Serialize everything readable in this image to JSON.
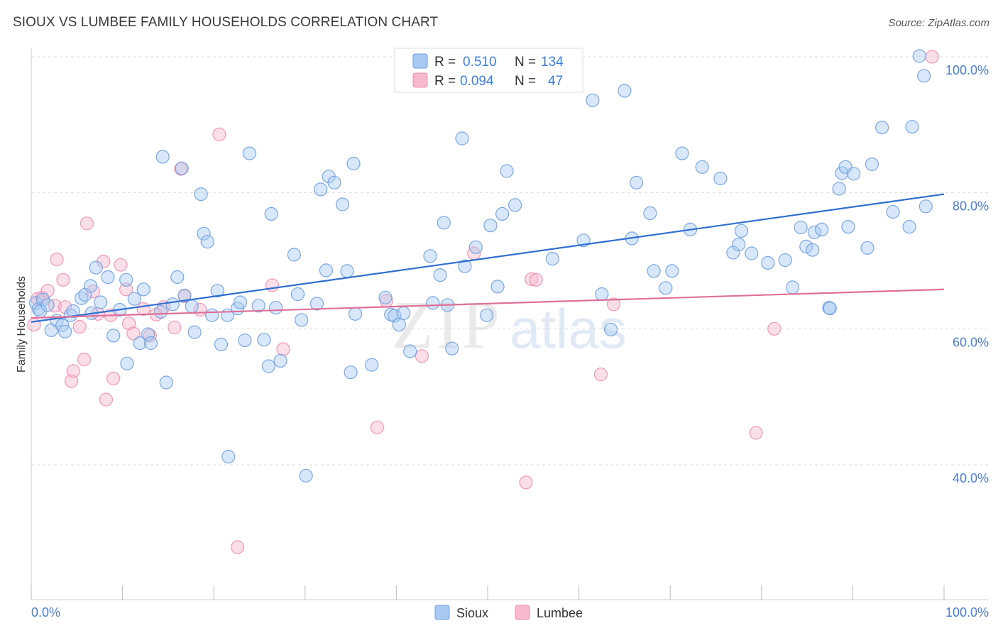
{
  "title": "SIOUX VS LUMBEE FAMILY HOUSEHOLDS CORRELATION CHART",
  "source": "Source: ZipAtlas.com",
  "watermark": {
    "zip": "ZIP",
    "atlas": "atlas"
  },
  "colors": {
    "sioux_fill": "#a9c9f2",
    "sioux_stroke": "#6f9fe0",
    "sioux_line": "#2f6fd0",
    "lumbee_fill": "#f7b9cc",
    "lumbee_stroke": "#ee8fb0",
    "lumbee_line": "#e0709a",
    "grid": "#dddddd",
    "axis_label": "#4a7fd0"
  },
  "legend_top": {
    "sioux": {
      "r_label": "R =",
      "r_value": "0.510",
      "n_label": "N =",
      "n_value": "134"
    },
    "lumbee": {
      "r_label": "R =",
      "r_value": "0.094",
      "n_label": "N =",
      "n_value": "47"
    }
  },
  "legend_bottom": {
    "sioux": "Sioux",
    "lumbee": "Lumbee"
  },
  "chart_data": {
    "type": "scatter",
    "title": "SIOUX VS LUMBEE FAMILY HOUSEHOLDS CORRELATION CHART",
    "xlabel": "",
    "ylabel": "Family Households",
    "xlim": [
      0,
      100
    ],
    "ylim": [
      20,
      102
    ],
    "x_tick_labels": [
      "0.0%",
      "100.0%"
    ],
    "y_ticks": [
      40,
      60,
      80,
      100
    ],
    "y_tick_labels": [
      "40.0%",
      "60.0%",
      "80.0%",
      "100.0%"
    ],
    "grid": "horizontal dashed",
    "legend": "top-center and bottom-center",
    "series": [
      {
        "name": "Sioux",
        "r": 0.51,
        "n": 134,
        "trend": {
          "x": [
            0,
            100
          ],
          "y": [
            61.0,
            79.8
          ]
        },
        "points": [
          [
            0.5,
            63.8
          ],
          [
            0.8,
            62.9
          ],
          [
            1.0,
            62.6
          ],
          [
            1.3,
            64.3
          ],
          [
            1.8,
            63.5
          ],
          [
            2.2,
            59.8
          ],
          [
            2.8,
            61.2
          ],
          [
            3.4,
            60.5
          ],
          [
            3.7,
            59.6
          ],
          [
            4.3,
            62.0
          ],
          [
            4.6,
            62.6
          ],
          [
            5.5,
            64.5
          ],
          [
            5.9,
            65.0
          ],
          [
            6.5,
            66.3
          ],
          [
            6.6,
            62.3
          ],
          [
            7.1,
            69.0
          ],
          [
            7.6,
            63.9
          ],
          [
            8.4,
            67.6
          ],
          [
            9.0,
            59.0
          ],
          [
            9.7,
            62.8
          ],
          [
            10.4,
            67.2
          ],
          [
            10.5,
            54.9
          ],
          [
            11.3,
            64.4
          ],
          [
            11.9,
            57.9
          ],
          [
            12.3,
            65.8
          ],
          [
            12.8,
            59.2
          ],
          [
            13.1,
            57.9
          ],
          [
            14.2,
            62.5
          ],
          [
            14.4,
            85.3
          ],
          [
            14.8,
            52.1
          ],
          [
            15.5,
            63.6
          ],
          [
            16.0,
            67.6
          ],
          [
            16.5,
            83.6
          ],
          [
            16.8,
            64.9
          ],
          [
            17.6,
            63.3
          ],
          [
            17.9,
            59.5
          ],
          [
            18.6,
            79.8
          ],
          [
            18.9,
            74.0
          ],
          [
            19.3,
            72.8
          ],
          [
            19.8,
            62.0
          ],
          [
            20.4,
            65.6
          ],
          [
            20.8,
            57.7
          ],
          [
            21.5,
            62.0
          ],
          [
            21.6,
            41.2
          ],
          [
            22.6,
            63.0
          ],
          [
            22.9,
            63.9
          ],
          [
            23.4,
            58.3
          ],
          [
            23.9,
            85.8
          ],
          [
            24.9,
            63.4
          ],
          [
            25.5,
            58.4
          ],
          [
            26.0,
            54.5
          ],
          [
            26.3,
            76.9
          ],
          [
            26.8,
            63.1
          ],
          [
            27.3,
            55.3
          ],
          [
            28.8,
            70.9
          ],
          [
            29.2,
            65.1
          ],
          [
            29.6,
            61.3
          ],
          [
            30.1,
            38.4
          ],
          [
            31.3,
            63.7
          ],
          [
            31.7,
            80.5
          ],
          [
            32.3,
            68.6
          ],
          [
            32.6,
            82.4
          ],
          [
            33.2,
            81.5
          ],
          [
            34.1,
            78.3
          ],
          [
            34.6,
            68.5
          ],
          [
            35.0,
            53.6
          ],
          [
            35.5,
            62.2
          ],
          [
            37.3,
            54.7
          ],
          [
            38.8,
            64.6
          ],
          [
            39.4,
            62.1
          ],
          [
            39.8,
            61.9
          ],
          [
            40.3,
            60.6
          ],
          [
            40.8,
            62.3
          ],
          [
            41.5,
            56.7
          ],
          [
            43.7,
            70.7
          ],
          [
            44.0,
            63.8
          ],
          [
            44.8,
            67.9
          ],
          [
            45.2,
            75.6
          ],
          [
            45.6,
            63.5
          ],
          [
            46.1,
            57.1
          ],
          [
            47.2,
            88.0
          ],
          [
            47.5,
            69.2
          ],
          [
            48.7,
            72.0
          ],
          [
            49.9,
            62.0
          ],
          [
            50.3,
            75.2
          ],
          [
            51.1,
            66.2
          ],
          [
            51.6,
            76.9
          ],
          [
            52.1,
            83.2
          ],
          [
            53.0,
            78.2
          ],
          [
            57.1,
            70.3
          ],
          [
            60.5,
            73.0
          ],
          [
            61.5,
            93.6
          ],
          [
            62.5,
            65.1
          ],
          [
            63.5,
            59.9
          ],
          [
            65.0,
            95.0
          ],
          [
            65.8,
            73.3
          ],
          [
            66.3,
            81.5
          ],
          [
            67.8,
            77.0
          ],
          [
            68.2,
            68.5
          ],
          [
            69.5,
            66.0
          ],
          [
            70.2,
            68.5
          ],
          [
            71.3,
            85.8
          ],
          [
            72.2,
            74.6
          ],
          [
            73.5,
            83.8
          ],
          [
            75.5,
            82.1
          ],
          [
            76.9,
            71.2
          ],
          [
            77.5,
            72.4
          ],
          [
            77.8,
            74.4
          ],
          [
            78.9,
            71.1
          ],
          [
            80.7,
            69.7
          ],
          [
            82.6,
            70.1
          ],
          [
            83.4,
            66.1
          ],
          [
            84.3,
            74.9
          ],
          [
            84.9,
            72.1
          ],
          [
            85.6,
            71.6
          ],
          [
            85.8,
            74.2
          ],
          [
            86.6,
            74.6
          ],
          [
            87.4,
            63.1
          ],
          [
            88.5,
            80.6
          ],
          [
            88.8,
            82.9
          ],
          [
            89.2,
            83.8
          ],
          [
            89.5,
            75.0
          ],
          [
            90.1,
            82.8
          ],
          [
            91.6,
            71.9
          ],
          [
            92.1,
            84.2
          ],
          [
            93.2,
            89.6
          ],
          [
            94.4,
            77.2
          ],
          [
            96.2,
            75.0
          ],
          [
            96.5,
            89.7
          ],
          [
            97.3,
            100.1
          ],
          [
            97.8,
            97.2
          ],
          [
            98.0,
            78.0
          ],
          [
            87.5,
            63.0
          ],
          [
            35.3,
            84.3
          ]
        ]
      },
      {
        "name": "Lumbee",
        "r": 0.094,
        "n": 47,
        "trend": {
          "x": [
            0,
            100
          ],
          "y": [
            61.6,
            65.8
          ]
        },
        "points": [
          [
            0.3,
            60.6
          ],
          [
            0.7,
            64.4
          ],
          [
            1.2,
            64.6
          ],
          [
            1.8,
            65.6
          ],
          [
            2.6,
            63.4
          ],
          [
            2.8,
            70.2
          ],
          [
            3.5,
            67.2
          ],
          [
            3.7,
            63.2
          ],
          [
            4.4,
            52.3
          ],
          [
            4.6,
            53.8
          ],
          [
            5.3,
            60.3
          ],
          [
            5.8,
            55.5
          ],
          [
            6.1,
            75.5
          ],
          [
            6.8,
            65.5
          ],
          [
            7.3,
            62.2
          ],
          [
            7.9,
            69.9
          ],
          [
            8.2,
            49.6
          ],
          [
            8.7,
            62.0
          ],
          [
            9.0,
            52.7
          ],
          [
            9.8,
            69.4
          ],
          [
            10.4,
            65.8
          ],
          [
            10.7,
            60.8
          ],
          [
            11.2,
            59.3
          ],
          [
            12.3,
            62.9
          ],
          [
            13.0,
            59.0
          ],
          [
            13.7,
            62.1
          ],
          [
            14.5,
            63.2
          ],
          [
            15.7,
            60.2
          ],
          [
            16.4,
            83.5
          ],
          [
            16.8,
            64.8
          ],
          [
            18.5,
            62.8
          ],
          [
            20.6,
            88.6
          ],
          [
            22.6,
            27.9
          ],
          [
            26.4,
            66.4
          ],
          [
            27.6,
            57.0
          ],
          [
            37.9,
            45.5
          ],
          [
            38.9,
            64.1
          ],
          [
            42.8,
            56.0
          ],
          [
            48.5,
            71.1
          ],
          [
            54.2,
            37.4
          ],
          [
            54.8,
            67.3
          ],
          [
            55.3,
            67.2
          ],
          [
            62.4,
            53.3
          ],
          [
            63.8,
            63.6
          ],
          [
            79.4,
            44.7
          ],
          [
            81.4,
            60.0
          ],
          [
            98.7,
            100.0
          ]
        ]
      }
    ]
  }
}
